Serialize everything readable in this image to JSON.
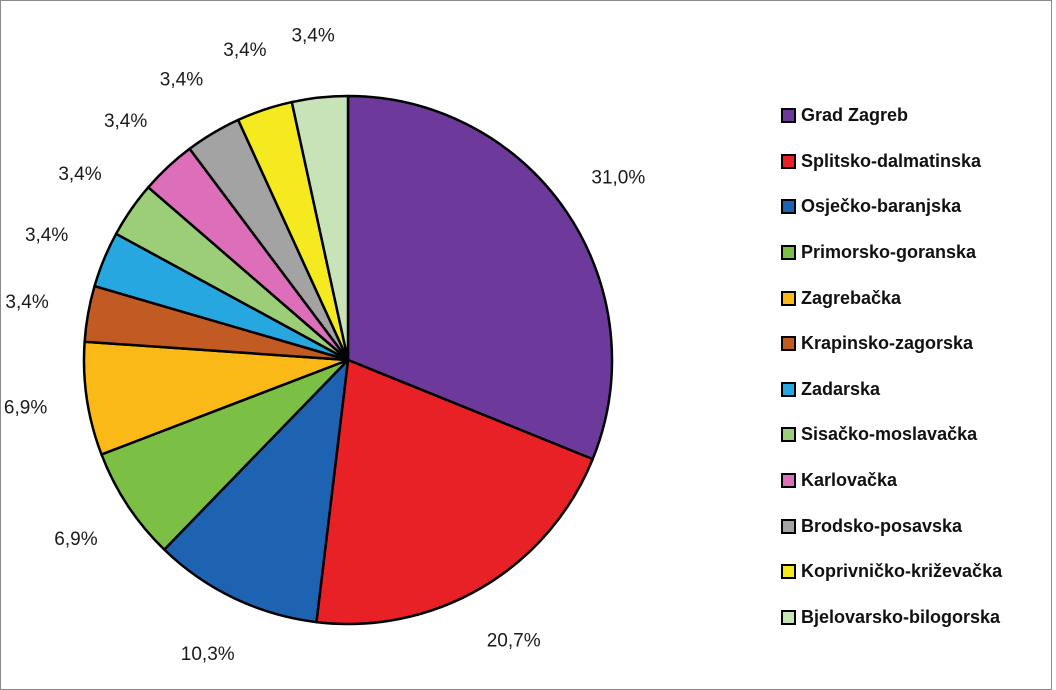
{
  "chart_data": {
    "type": "pie",
    "title": "",
    "legend_placement": "right",
    "start_angle": "top",
    "direction": "clockwise",
    "slices": [
      {
        "name": "Grad Zagreb",
        "value": 31.0,
        "label": "31,0%",
        "color": "#6d3a9c"
      },
      {
        "name": "Splitsko-dalmatinska",
        "value": 20.7,
        "label": "20,7%",
        "color": "#e82127"
      },
      {
        "name": "Osječko-baranjska",
        "value": 10.3,
        "label": "10,3%",
        "color": "#1e63b1"
      },
      {
        "name": "Primorsko-goranska",
        "value": 6.9,
        "label": "6,9%",
        "color": "#7cbf45"
      },
      {
        "name": "Zagrebačka",
        "value": 6.9,
        "label": "6,9%",
        "color": "#fbb917"
      },
      {
        "name": "Krapinsko-zagorska",
        "value": 3.4,
        "label": "3,4%",
        "color": "#c25a23"
      },
      {
        "name": "Zadarska",
        "value": 3.4,
        "label": "3,4%",
        "color": "#27a7e0"
      },
      {
        "name": "Sisačko-moslavačka",
        "value": 3.4,
        "label": "3,4%",
        "color": "#9ccd78"
      },
      {
        "name": "Karlovačka",
        "value": 3.4,
        "label": "3,4%",
        "color": "#dd6eb9"
      },
      {
        "name": "Brodsko-posavska",
        "value": 3.4,
        "label": "3,4%",
        "color": "#a3a3a3"
      },
      {
        "name": "Koprivničko-križevačka",
        "value": 3.4,
        "label": "3,4%",
        "color": "#f4ea1f"
      },
      {
        "name": "Bjelovarsko-bilogorska",
        "value": 3.4,
        "label": "3,4%",
        "color": "#c9e3b8"
      }
    ]
  }
}
